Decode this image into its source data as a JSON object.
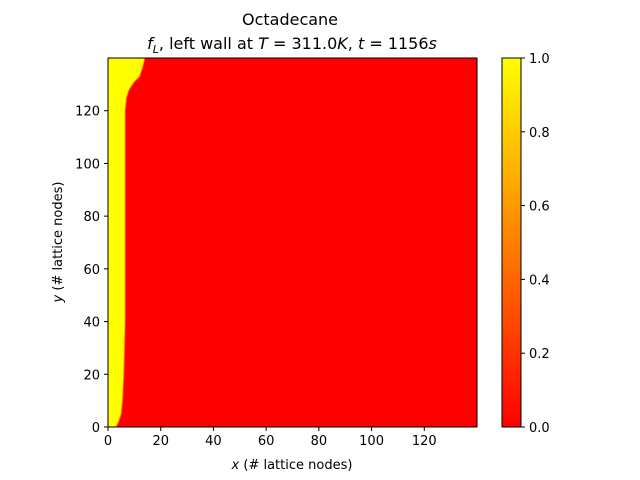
{
  "chart_data": {
    "type": "heatmap",
    "title": "Octadecane",
    "subtitle_parts": {
      "symbol": "f",
      "subscript": "L",
      "text_a": ", left wall at ",
      "T_var": "T",
      "T_value": " = 311.0",
      "T_unit": "K",
      "sep": ", ",
      "t_var": "t",
      "t_value": " = 1156",
      "t_unit": "s"
    },
    "xlabel": {
      "var": "x",
      "text": " (# lattice nodes)"
    },
    "ylabel": {
      "var": "y",
      "text": " (# lattice nodes)"
    },
    "xlim": [
      0,
      140
    ],
    "ylim": [
      0,
      140
    ],
    "x_ticks": [
      0,
      20,
      40,
      60,
      80,
      100,
      120
    ],
    "y_ticks": [
      0,
      20,
      40,
      60,
      80,
      100,
      120
    ],
    "colorbar": {
      "range": [
        0.0,
        1.0
      ],
      "ticks": [
        "0.0",
        "0.2",
        "0.4",
        "0.6",
        "0.8",
        "1.0"
      ],
      "colormap": "autumn",
      "color_low": "#ff0000",
      "color_high": "#ffff00"
    },
    "melt_front": {
      "description": "liquid fraction = 1 for x < front(y), 0 elsewhere",
      "y": [
        0,
        2,
        5,
        10,
        20,
        40,
        60,
        80,
        100,
        110,
        120,
        125,
        128,
        131,
        133,
        136,
        140
      ],
      "x": [
        3,
        4,
        5,
        5.5,
        6,
        6.5,
        6.5,
        6.5,
        6.5,
        6.5,
        6.5,
        7,
        8,
        10,
        12,
        13,
        14
      ]
    }
  }
}
